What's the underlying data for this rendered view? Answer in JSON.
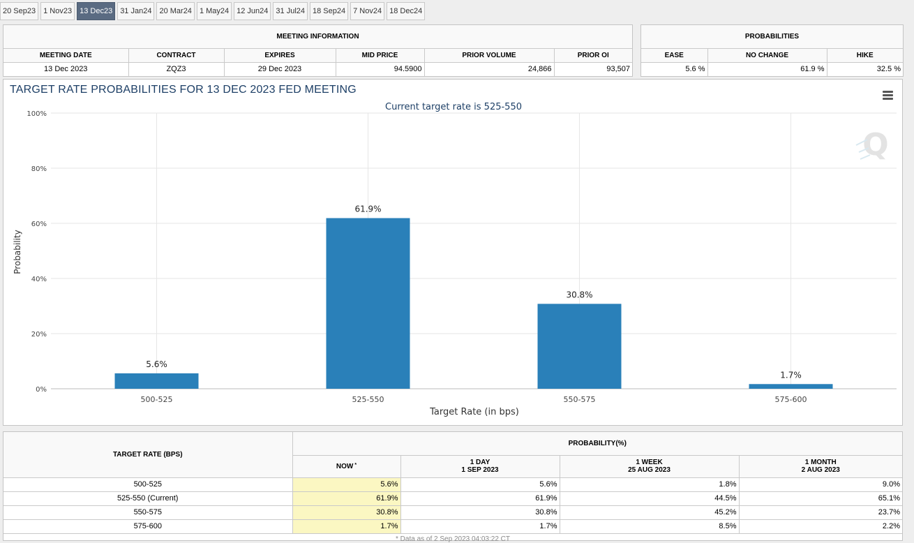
{
  "tabs": [
    {
      "label": "20 Sep23",
      "active": false
    },
    {
      "label": "1 Nov23",
      "active": false
    },
    {
      "label": "13 Dec23",
      "active": true
    },
    {
      "label": "31 Jan24",
      "active": false
    },
    {
      "label": "20 Mar24",
      "active": false
    },
    {
      "label": "1 May24",
      "active": false
    },
    {
      "label": "12 Jun24",
      "active": false
    },
    {
      "label": "31 Jul24",
      "active": false
    },
    {
      "label": "18 Sep24",
      "active": false
    },
    {
      "label": "7 Nov24",
      "active": false
    },
    {
      "label": "18 Dec24",
      "active": false
    }
  ],
  "meeting_info": {
    "title": "MEETING INFORMATION",
    "headers": [
      "MEETING DATE",
      "CONTRACT",
      "EXPIRES",
      "MID PRICE",
      "PRIOR VOLUME",
      "PRIOR OI"
    ],
    "values": [
      "13 Dec 2023",
      "ZQZ3",
      "29 Dec 2023",
      "94.5900",
      "24,866",
      "93,507"
    ]
  },
  "probabilities": {
    "title": "PROBABILITIES",
    "headers": [
      "EASE",
      "NO CHANGE",
      "HIKE"
    ],
    "values": [
      "5.6 %",
      "61.9 %",
      "32.5 %"
    ]
  },
  "colors": {
    "bar": "#2a80b9",
    "title": "#1d3f66",
    "grid": "#e6e6e6",
    "now_highlight": "#fbf7c2"
  },
  "icons": {
    "menu": "hamburger-menu-icon",
    "watermark": "q-logo-icon"
  },
  "chart_data": {
    "type": "bar",
    "title": "TARGET RATE PROBABILITIES FOR 13 DEC 2023 FED MEETING",
    "subtitle": "Current target rate is 525-550",
    "xlabel": "Target Rate (in bps)",
    "ylabel": "Probability",
    "categories": [
      "500-525",
      "525-550",
      "550-575",
      "575-600"
    ],
    "values": [
      5.6,
      61.9,
      30.8,
      1.7
    ],
    "data_labels": [
      "5.6%",
      "61.9%",
      "30.8%",
      "1.7%"
    ],
    "ylim": [
      0,
      100
    ],
    "yticks": [
      0,
      20,
      40,
      60,
      80,
      100
    ],
    "ytick_labels": [
      "0%",
      "20%",
      "40%",
      "60%",
      "80%",
      "100%"
    ],
    "grid": true,
    "watermark": "Q"
  },
  "probability_table": {
    "rate_header": "TARGET RATE (BPS)",
    "group_header": "PROBABILITY(%)",
    "columns": [
      {
        "line1": "NOW",
        "line2": ""
      },
      {
        "line1": "1 DAY",
        "line2": "1 SEP 2023"
      },
      {
        "line1": "1 WEEK",
        "line2": "25 AUG 2023"
      },
      {
        "line1": "1 MONTH",
        "line2": "2 AUG 2023"
      }
    ],
    "now_marker": "*",
    "rows": [
      {
        "rate": "500-525",
        "values": [
          "5.6%",
          "5.6%",
          "1.8%",
          "9.0%"
        ]
      },
      {
        "rate": "525-550 (Current)",
        "values": [
          "61.9%",
          "61.9%",
          "44.5%",
          "65.1%"
        ]
      },
      {
        "rate": "550-575",
        "values": [
          "30.8%",
          "30.8%",
          "45.2%",
          "23.7%"
        ]
      },
      {
        "rate": "575-600",
        "values": [
          "1.7%",
          "1.7%",
          "8.5%",
          "2.2%"
        ]
      }
    ],
    "note": "* Data as of 2 Sep 2023 04:03:22 CT"
  }
}
